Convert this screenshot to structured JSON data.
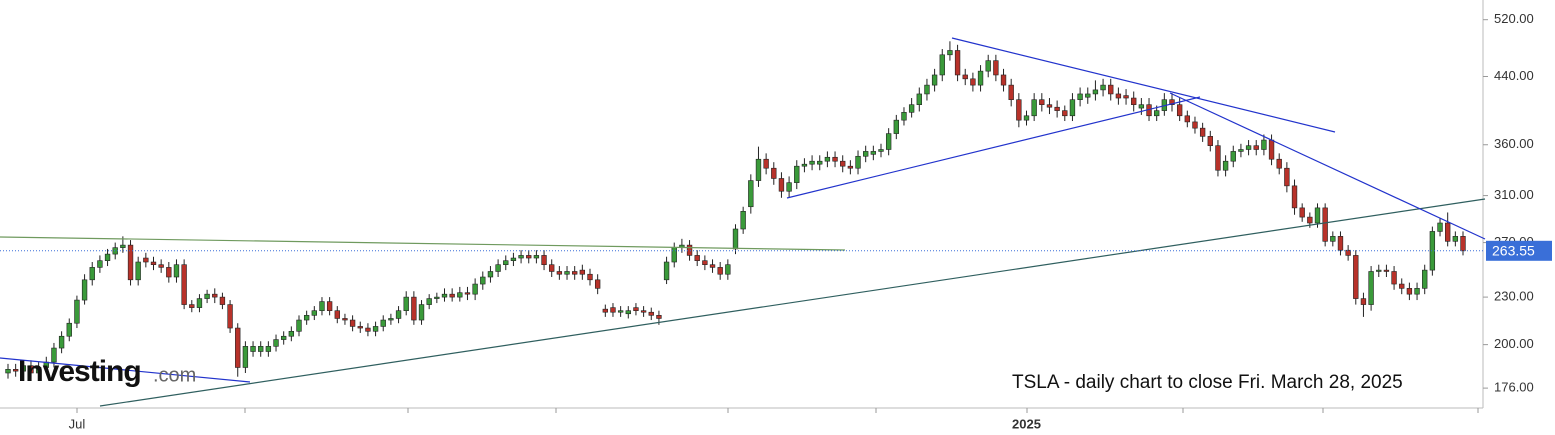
{
  "chart_data": {
    "type": "candlestick",
    "caption": "TSLA - daily chart to close Fri. March 28, 2025",
    "logo_main": "Investing",
    "logo_suffix": ".com",
    "log_scale": true,
    "up_color": "#3a9a3a",
    "down_color": "#b8322a",
    "ylim": [
      166,
      551
    ],
    "yticks": [
      {
        "value": 176,
        "label": "176.00"
      },
      {
        "value": 200,
        "label": "200.00"
      },
      {
        "value": 230,
        "label": "230.00"
      },
      {
        "value": 270,
        "label": "270.00"
      },
      {
        "value": 310,
        "label": "310.00"
      },
      {
        "value": 360,
        "label": "360.00"
      },
      {
        "value": 440,
        "label": "440.00"
      },
      {
        "value": 520,
        "label": "520.00"
      }
    ],
    "categories": [
      null,
      null,
      null,
      null,
      null,
      null,
      null,
      null,
      null,
      "Jul",
      null,
      null,
      null,
      null,
      null,
      null,
      null,
      null,
      null,
      null,
      null,
      null,
      null,
      null,
      null,
      null,
      null,
      null,
      null,
      null,
      null,
      null,
      null,
      null,
      null,
      null,
      null,
      null,
      null,
      null,
      null,
      null,
      null,
      null,
      null,
      null,
      null,
      null,
      null,
      null,
      null,
      null,
      null,
      null,
      null,
      null,
      null,
      null,
      null,
      null,
      null,
      null,
      null,
      null,
      null,
      null,
      null,
      null,
      null,
      null,
      null,
      null,
      null,
      null,
      null,
      null,
      null,
      null,
      null,
      null,
      null,
      null,
      null,
      null,
      null,
      null,
      null,
      null,
      null,
      null,
      null,
      null,
      null,
      null,
      null,
      null,
      null,
      null,
      null,
      null,
      null,
      null,
      null,
      null,
      null,
      null,
      null,
      null,
      null,
      null,
      null,
      null,
      null,
      null,
      null,
      null,
      null,
      null,
      null,
      null,
      null,
      null,
      null,
      null,
      null,
      null,
      null,
      null,
      null,
      null,
      null,
      null,
      null,
      "2025",
      null,
      null,
      null,
      null,
      null,
      null,
      null,
      null,
      null,
      null,
      null,
      null,
      null,
      null,
      null,
      null,
      null,
      null,
      null,
      null,
      null,
      null,
      null,
      null,
      null,
      null,
      null,
      null,
      null,
      null,
      null,
      null,
      null,
      null,
      null,
      null,
      null,
      null,
      null,
      null,
      null,
      null,
      null,
      null,
      null,
      null,
      null,
      null,
      null,
      null,
      null,
      null,
      null,
      null,
      null,
      null,
      null
    ],
    "open": [
      184,
      186,
      185,
      188,
      184,
      187,
      190,
      198,
      205,
      213,
      228,
      242,
      251,
      256,
      261,
      266,
      268,
      242,
      258,
      255,
      253,
      251,
      244,
      253,
      225,
      223,
      229,
      232,
      230,
      225,
      210,
      187,
      196,
      196,
      196,
      199,
      203,
      205,
      208,
      215,
      218,
      221,
      227,
      221,
      216,
      215,
      211,
      210,
      208,
      211,
      215,
      216,
      221,
      230,
      215,
      225,
      229,
      230,
      232,
      230,
      233,
      232,
      239,
      244,
      248,
      253,
      256,
      258,
      260,
      258,
      260,
      253,
      248,
      246,
      248,
      249,
      246,
      242,
      222,
      223,
      220,
      219,
      223,
      221,
      220,
      218,
      242,
      255,
      266,
      268,
      260,
      256,
      253,
      251,
      246,
      265,
      281,
      300,
      324,
      345,
      336,
      326,
      314,
      322,
      338,
      340,
      340,
      343,
      347,
      343,
      338,
      336,
      348,
      350,
      353,
      355,
      372,
      387,
      396,
      405,
      418,
      429,
      442,
      469,
      475,
      442,
      437,
      429,
      447,
      461,
      442,
      429,
      411,
      387,
      392,
      411,
      405,
      402,
      398,
      392,
      411,
      414,
      418,
      423,
      429,
      418,
      416,
      413,
      401,
      405,
      392,
      398,
      411,
      405,
      392,
      385,
      378,
      369,
      359,
      334,
      343,
      353,
      355,
      359,
      355,
      365,
      345,
      336,
      319,
      299,
      291,
      286,
      299,
      271,
      275,
      264,
      260,
      229,
      225,
      248,
      249,
      248,
      239,
      236,
      232,
      236,
      249,
      279,
      286,
      271,
      275
    ],
    "high": [
      189,
      189,
      191,
      191,
      190,
      193,
      201,
      208,
      216,
      231,
      246,
      255,
      260,
      265,
      270,
      275,
      272,
      259,
      262,
      259,
      257,
      255,
      257,
      257,
      228,
      232,
      235,
      236,
      233,
      228,
      213,
      202,
      202,
      202,
      202,
      206,
      208,
      211,
      218,
      221,
      224,
      230,
      230,
      224,
      219,
      218,
      214,
      213,
      214,
      218,
      219,
      224,
      234,
      234,
      228,
      232,
      233,
      236,
      236,
      237,
      237,
      243,
      248,
      252,
      257,
      260,
      262,
      264,
      264,
      264,
      264,
      257,
      252,
      252,
      252,
      253,
      250,
      246,
      225,
      226,
      224,
      224,
      226,
      224,
      223,
      221,
      259,
      270,
      273,
      272,
      264,
      260,
      257,
      255,
      257,
      285,
      300,
      330,
      358,
      351,
      342,
      332,
      328,
      344,
      346,
      349,
      349,
      353,
      353,
      349,
      344,
      354,
      359,
      359,
      361,
      378,
      393,
      402,
      413,
      426,
      437,
      450,
      477,
      488,
      483,
      450,
      445,
      455,
      469,
      469,
      450,
      437,
      419,
      398,
      419,
      419,
      413,
      410,
      404,
      419,
      426,
      426,
      435,
      437,
      437,
      426,
      424,
      421,
      413,
      413,
      404,
      419,
      419,
      413,
      398,
      391,
      384,
      375,
      365,
      349,
      359,
      361,
      365,
      365,
      371,
      371,
      351,
      342,
      325,
      303,
      295,
      303,
      303,
      279,
      279,
      268,
      264,
      233,
      252,
      253,
      253,
      252,
      243,
      240,
      240,
      253,
      283,
      290,
      295,
      279,
      279
    ],
    "low": [
      181,
      182,
      182,
      181,
      181,
      184,
      187,
      195,
      202,
      210,
      225,
      238,
      247,
      252,
      257,
      262,
      238,
      238,
      251,
      249,
      247,
      240,
      240,
      222,
      220,
      220,
      226,
      226,
      222,
      207,
      182,
      184,
      193,
      193,
      193,
      196,
      200,
      202,
      205,
      212,
      215,
      218,
      218,
      213,
      212,
      208,
      207,
      205,
      205,
      208,
      212,
      213,
      218,
      212,
      212,
      222,
      226,
      227,
      227,
      227,
      228,
      228,
      235,
      240,
      244,
      249,
      252,
      254,
      254,
      254,
      249,
      244,
      242,
      242,
      242,
      242,
      238,
      232,
      217,
      217,
      217,
      216,
      218,
      217,
      215,
      212,
      239,
      251,
      262,
      256,
      252,
      249,
      247,
      242,
      242,
      261,
      277,
      294,
      318,
      330,
      320,
      308,
      308,
      316,
      332,
      334,
      334,
      337,
      337,
      332,
      330,
      330,
      342,
      344,
      347,
      349,
      366,
      381,
      390,
      397,
      410,
      421,
      434,
      461,
      434,
      429,
      421,
      421,
      439,
      434,
      421,
      403,
      379,
      381,
      386,
      397,
      394,
      390,
      386,
      386,
      403,
      406,
      410,
      415,
      410,
      405,
      405,
      397,
      393,
      386,
      386,
      392,
      397,
      386,
      379,
      372,
      363,
      353,
      328,
      328,
      337,
      347,
      349,
      349,
      349,
      339,
      330,
      313,
      293,
      287,
      282,
      282,
      267,
      267,
      260,
      256,
      225,
      217,
      221,
      244,
      244,
      235,
      232,
      228,
      228,
      232,
      245,
      275,
      267,
      267,
      260
    ],
    "close": [
      186,
      185,
      188,
      184,
      187,
      190,
      198,
      205,
      213,
      228,
      242,
      251,
      256,
      261,
      266,
      268,
      242,
      255,
      255,
      253,
      251,
      244,
      253,
      225,
      223,
      229,
      232,
      230,
      225,
      210,
      187,
      199,
      199,
      199,
      199,
      203,
      205,
      208,
      215,
      218,
      221,
      227,
      221,
      216,
      215,
      211,
      210,
      208,
      211,
      215,
      216,
      221,
      230,
      215,
      225,
      229,
      230,
      232,
      230,
      233,
      232,
      239,
      244,
      248,
      253,
      256,
      258,
      260,
      258,
      260,
      253,
      248,
      246,
      248,
      246,
      246,
      242,
      236,
      220,
      220,
      221,
      221,
      221,
      220,
      218,
      216,
      255,
      266,
      268,
      260,
      256,
      253,
      251,
      246,
      253,
      281,
      296,
      324,
      345,
      336,
      326,
      314,
      322,
      338,
      340,
      343,
      343,
      347,
      343,
      338,
      336,
      348,
      353,
      353,
      355,
      372,
      387,
      396,
      405,
      418,
      429,
      442,
      469,
      475,
      442,
      437,
      429,
      447,
      461,
      442,
      429,
      411,
      387,
      392,
      411,
      405,
      402,
      398,
      392,
      411,
      418,
      418,
      423,
      429,
      418,
      413,
      413,
      405,
      405,
      392,
      398,
      411,
      405,
      392,
      385,
      378,
      369,
      359,
      334,
      343,
      353,
      355,
      359,
      355,
      365,
      345,
      336,
      319,
      299,
      291,
      286,
      299,
      271,
      275,
      264,
      260,
      229,
      225,
      248,
      249,
      248,
      239,
      236,
      232,
      236,
      249,
      279,
      286,
      271,
      275,
      263.55
    ]
  }
}
